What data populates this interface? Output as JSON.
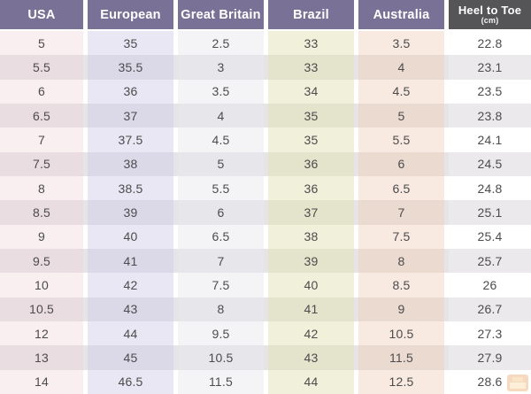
{
  "table": {
    "column_keys": [
      "usa",
      "european",
      "great-britain",
      "brazil",
      "australia",
      "heel-to-toe"
    ],
    "headers": [
      {
        "label": "USA"
      },
      {
        "label": "European"
      },
      {
        "label": "Great Britain"
      },
      {
        "label": "Brazil"
      },
      {
        "label": "Australia"
      },
      {
        "label": "Heel to Toe",
        "sub": "(cm)"
      }
    ]
  },
  "chart_data": {
    "type": "table",
    "columns": [
      "USA",
      "European",
      "Great Britain",
      "Brazil",
      "Australia",
      "Heel to Toe (cm)"
    ],
    "rows": [
      [
        "5",
        "35",
        "2.5",
        "33",
        "3.5",
        "22.8"
      ],
      [
        "5.5",
        "35.5",
        "3",
        "33",
        "4",
        "23.1"
      ],
      [
        "6",
        "36",
        "3.5",
        "34",
        "4.5",
        "23.5"
      ],
      [
        "6.5",
        "37",
        "4",
        "35",
        "5",
        "23.8"
      ],
      [
        "7",
        "37.5",
        "4.5",
        "35",
        "5.5",
        "24.1"
      ],
      [
        "7.5",
        "38",
        "5",
        "36",
        "6",
        "24.5"
      ],
      [
        "8",
        "38.5",
        "5.5",
        "36",
        "6.5",
        "24.8"
      ],
      [
        "8.5",
        "39",
        "6",
        "37",
        "7",
        "25.1"
      ],
      [
        "9",
        "40",
        "6.5",
        "38",
        "7.5",
        "25.4"
      ],
      [
        "9.5",
        "41",
        "7",
        "39",
        "8",
        "25.7"
      ],
      [
        "10",
        "42",
        "7.5",
        "40",
        "8.5",
        "26"
      ],
      [
        "10.5",
        "43",
        "8",
        "41",
        "9",
        "26.7"
      ],
      [
        "12",
        "44",
        "9.5",
        "42",
        "10.5",
        "27.3"
      ],
      [
        "13",
        "45",
        "10.5",
        "43",
        "11.5",
        "27.9"
      ],
      [
        "14",
        "46.5",
        "11.5",
        "44",
        "12.5",
        "28.6"
      ]
    ]
  },
  "colors": {
    "header_bg": "#7a7197",
    "heel_header_bg": "#555457",
    "header_text": "#ffffff",
    "cell_text": "#4c4b4d",
    "stripe_odd": "#ffffff",
    "stripe_even": "#e6e4e6",
    "column_odd": [
      "#f9eef0",
      "#e9e7f3",
      "#f4f4f7",
      "#f1f0da",
      "#f8eae1",
      "#ffffff"
    ],
    "column_even": [
      "#eadde1",
      "#dbd9e7",
      "#e7e6ea",
      "#e4e3cb",
      "#ebdacf",
      "#ebe9eb"
    ],
    "watermark": "#e9a05c"
  },
  "icons": {
    "watermark": "logo-watermark-icon"
  }
}
